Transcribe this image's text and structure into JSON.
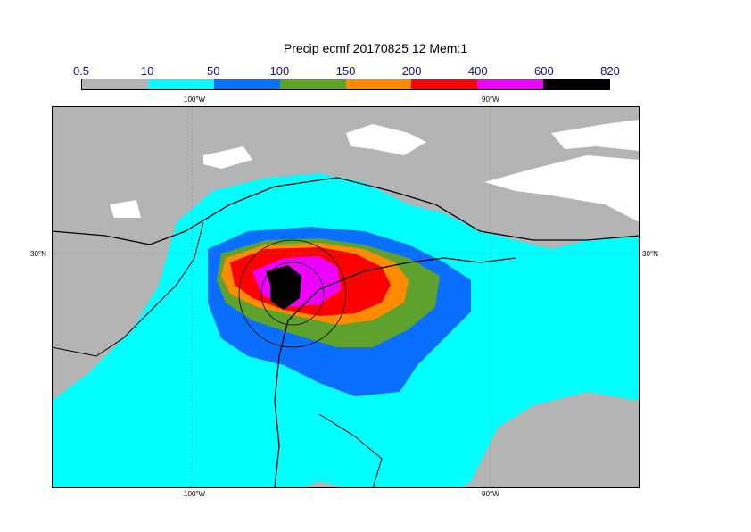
{
  "chart_data": {
    "type": "heatmap",
    "title": "Precip ecmf 20170825 12 Mem:1",
    "legend": {
      "boundaries": [
        "0.5",
        "10",
        "50",
        "100",
        "150",
        "200",
        "400",
        "600",
        "820"
      ],
      "colors": [
        "#b4b4b4",
        "#00ffff",
        "#0a6eff",
        "#5ea12c",
        "#ff8c00",
        "#ff0000",
        "#ee00ff",
        "#000000"
      ]
    },
    "axes": {
      "lon_top": [
        "100°W",
        "90°W"
      ],
      "lon_bottom": [
        "100°W",
        "90°W"
      ],
      "lat_left": [
        "30°N"
      ],
      "lat_right": [
        "30°N"
      ],
      "grid": true
    },
    "field_colors": {
      "land_no_precip": "#b4b4b4",
      "light": "#00ffff",
      "none": "#ffffff",
      "coast": "#000000"
    }
  }
}
